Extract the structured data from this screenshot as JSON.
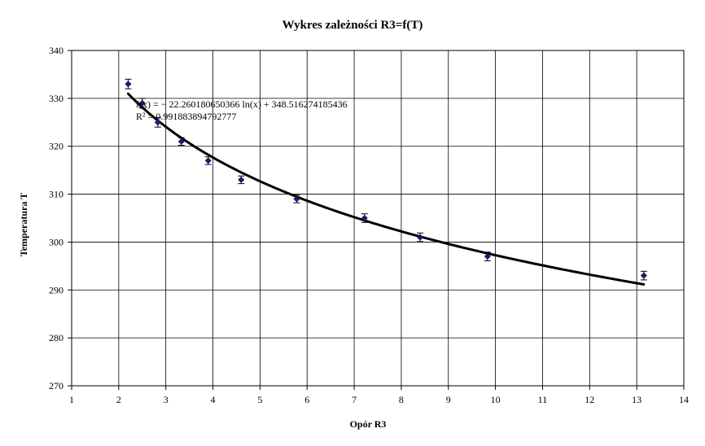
{
  "chart_data": {
    "type": "scatter",
    "title": "Wykres zależności R3=f(T)",
    "xlabel": "Opór R3",
    "ylabel": "Temperatura T",
    "xlim": [
      1,
      14
    ],
    "ylim": [
      270,
      340
    ],
    "xticks": [
      1,
      2,
      3,
      4,
      5,
      6,
      7,
      8,
      9,
      10,
      11,
      12,
      13,
      14
    ],
    "yticks": [
      270,
      280,
      290,
      300,
      310,
      320,
      330,
      340
    ],
    "grid": true,
    "marker_color": "#1a1a6e",
    "points": [
      {
        "x": 2.2,
        "y": 333,
        "err": 1
      },
      {
        "x": 2.5,
        "y": 329,
        "err": 1
      },
      {
        "x": 2.83,
        "y": 325,
        "err": 1
      },
      {
        "x": 3.33,
        "y": 321,
        "err": 0.8
      },
      {
        "x": 3.9,
        "y": 317,
        "err": 0.8
      },
      {
        "x": 4.6,
        "y": 313,
        "err": 0.8
      },
      {
        "x": 5.78,
        "y": 309,
        "err": 0.8
      },
      {
        "x": 7.22,
        "y": 305,
        "err": 0.9
      },
      {
        "x": 8.4,
        "y": 301,
        "err": 0.9
      },
      {
        "x": 9.83,
        "y": 297,
        "err": 0.9
      },
      {
        "x": 13.15,
        "y": 293,
        "err": 0.9
      }
    ],
    "trendline": {
      "type": "logarithmic",
      "a": -22.260180650366,
      "b": 348.516274185436,
      "x_start": 2.2,
      "x_end": 13.15
    },
    "equation_text": "f(x) = − 22.260180650366 ln(x) + 348.516274185436",
    "r2_text": "R² = 0.991883894792777"
  }
}
